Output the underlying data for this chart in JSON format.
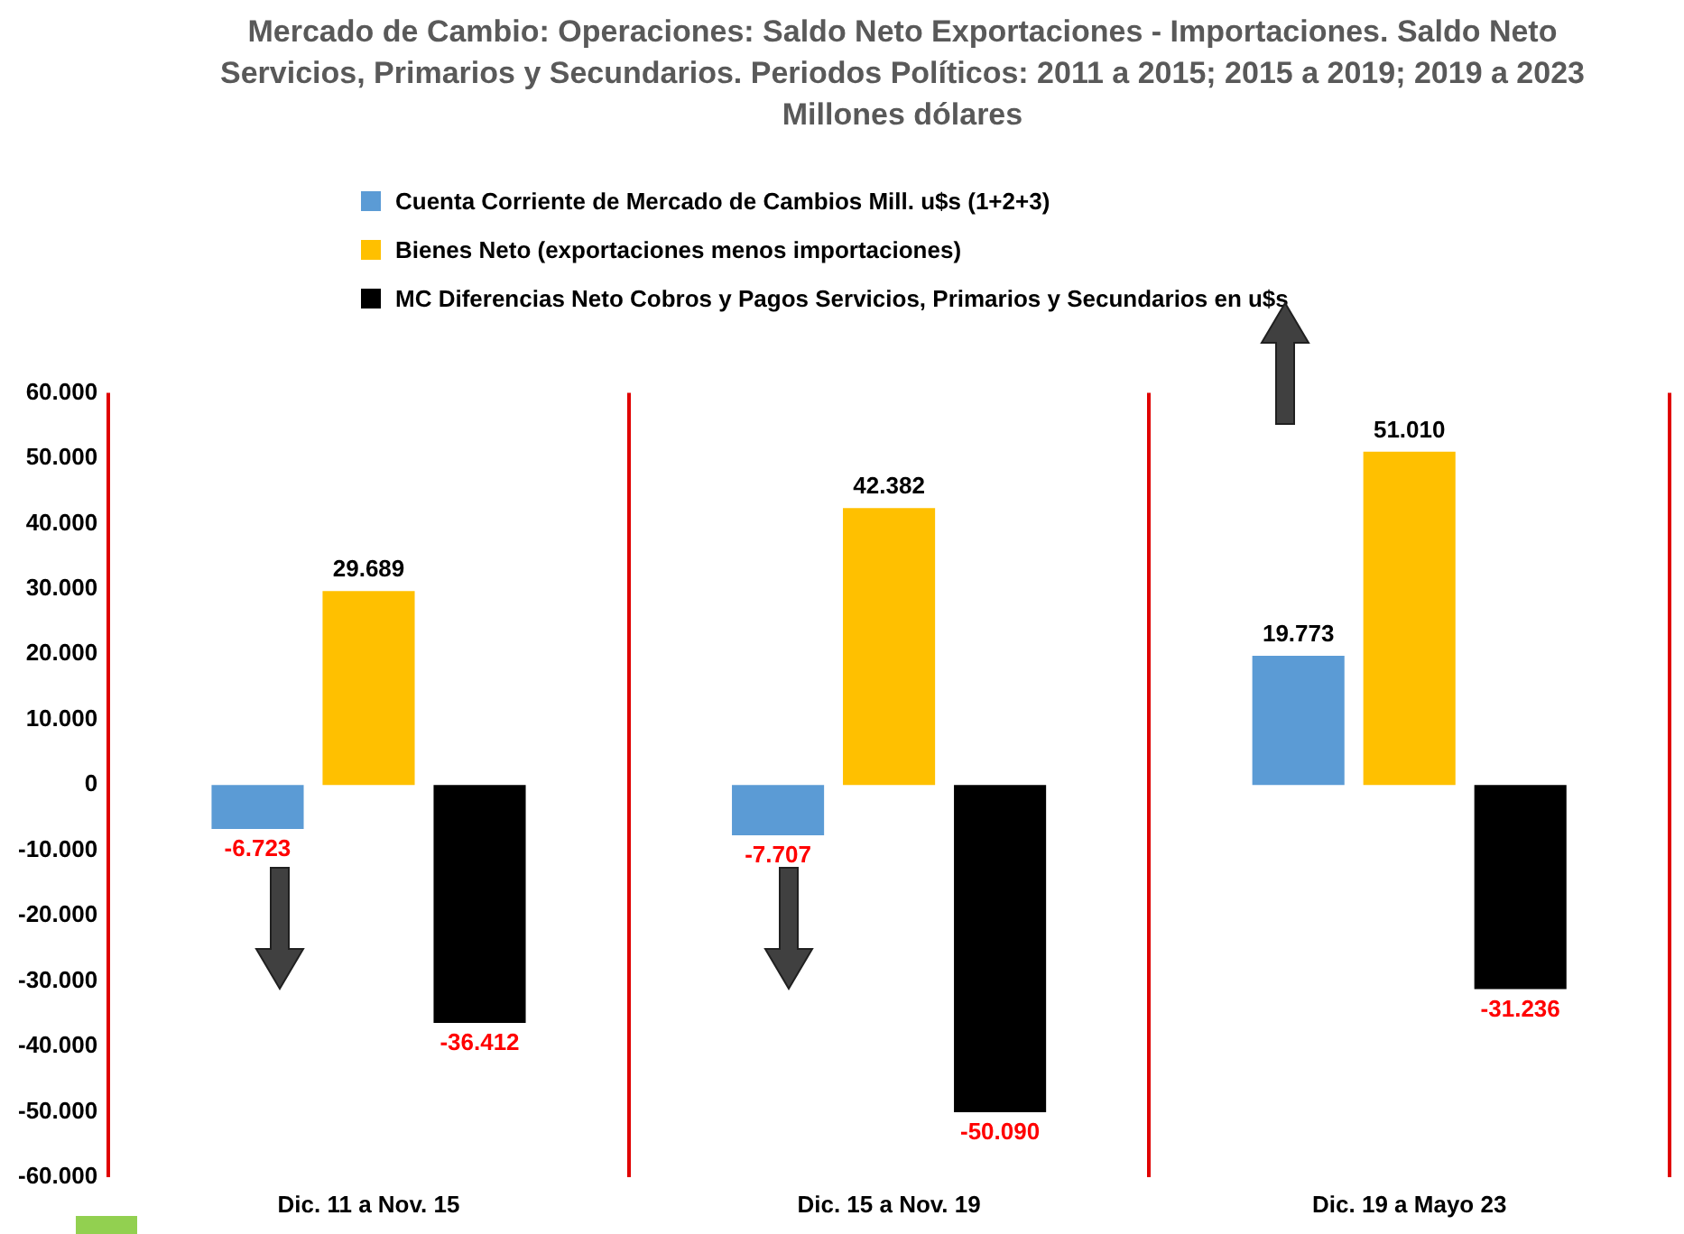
{
  "chart_data": {
    "type": "bar",
    "title": "Mercado de Cambio: Operaciones: Saldo Neto Exportaciones - Importaciones. Saldo Neto Servicios, Primarios y Secundarios. Periodos Políticos: 2011 a 2015; 2015 a 2019; 2019 a 2023\nMillones dólares",
    "categories": [
      "Dic. 11 a Nov. 15",
      "Dic. 15 a Nov. 19",
      "Dic. 19 a Mayo 23"
    ],
    "series": [
      {
        "name": "Cuenta Corriente de Mercado de Cambios Mill. u$s (1+2+3)",
        "color": "#5b9bd5",
        "values": [
          -6723,
          -7707,
          19773
        ],
        "value_labels": [
          "-6.723",
          "-7.707",
          "19.773"
        ]
      },
      {
        "name": "Bienes Neto (exportaciones menos importaciones)",
        "color": "#ffc000",
        "values": [
          29689,
          42382,
          51010
        ],
        "value_labels": [
          "29.689",
          "42.382",
          "51.010"
        ]
      },
      {
        "name": "MC Diferencias Neto Cobros y Pagos Servicios, Primarios y Secundarios en u$s",
        "color": "#000000",
        "values": [
          -36412,
          -50090,
          -31236
        ],
        "value_labels": [
          "-36.412",
          "-50.090",
          "-31.236"
        ]
      }
    ],
    "ylim": [
      -60000,
      60000
    ],
    "yticks": [
      {
        "value": -60000,
        "label": "-60.000"
      },
      {
        "value": -50000,
        "label": "-50.000"
      },
      {
        "value": -40000,
        "label": "-40.000"
      },
      {
        "value": -30000,
        "label": "-30.000"
      },
      {
        "value": -20000,
        "label": "-20.000"
      },
      {
        "value": -10000,
        "label": "-10.000"
      },
      0,
      {
        "value": 10000,
        "label": "10.000"
      },
      {
        "value": 20000,
        "label": "20.000"
      },
      {
        "value": 30000,
        "label": "30.000"
      },
      {
        "value": 40000,
        "label": "40.000"
      },
      {
        "value": 50000,
        "label": "50.000"
      },
      {
        "value": 60000,
        "label": "60.000"
      }
    ],
    "grid": "x",
    "legend": "top"
  }
}
